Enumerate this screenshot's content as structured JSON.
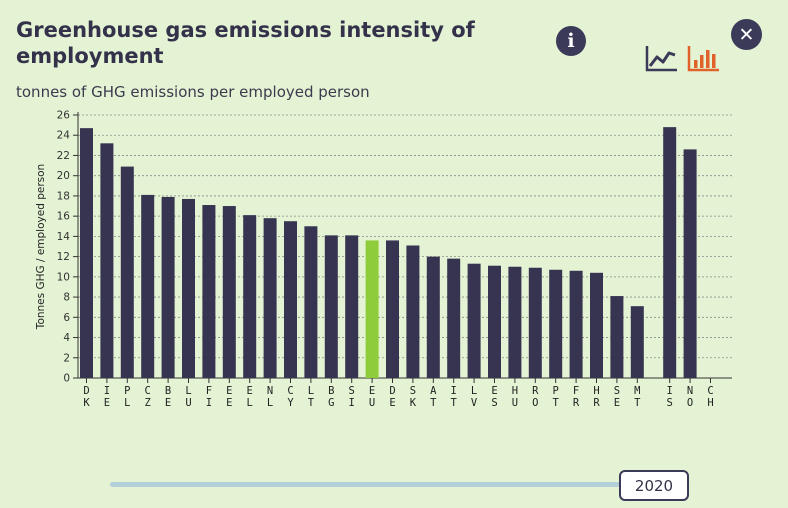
{
  "header": {
    "title": "Greenhouse gas emissions intensity of employment",
    "subtitle": "tonnes of GHG emissions per employed person",
    "info_icon": "info-icon",
    "close_icon": "close-icon",
    "line_chart_icon": "line-chart-icon",
    "bar_chart_icon": "bar-chart-icon"
  },
  "colors": {
    "bar": "#363450",
    "highlight": "#8fcc3b",
    "accent": "#e0622a",
    "background": "#e4f3d4"
  },
  "chart_data": {
    "type": "bar",
    "title": "",
    "ylabel": "Tonnes GHG / employed person",
    "xlabel": "",
    "ylim": [
      0,
      26
    ],
    "yticks": [
      0,
      2,
      4,
      6,
      8,
      10,
      12,
      14,
      16,
      18,
      20,
      22,
      24,
      26
    ],
    "grid": true,
    "categories": [
      "DK",
      "IE",
      "PL",
      "CZ",
      "BE",
      "LU",
      "FI",
      "EE",
      "EL",
      "NL",
      "CY",
      "LT",
      "BG",
      "SI",
      "EU",
      "DE",
      "SK",
      "AT",
      "IT",
      "LV",
      "ES",
      "HU",
      "RO",
      "PT",
      "FR",
      "HR",
      "SE",
      "MT",
      "IS",
      "NO",
      "CH"
    ],
    "values": [
      24.7,
      23.2,
      20.9,
      18.1,
      17.9,
      17.7,
      17.1,
      17.0,
      16.1,
      15.8,
      15.5,
      15.0,
      14.1,
      14.1,
      13.6,
      13.6,
      13.1,
      12.0,
      11.8,
      11.3,
      11.1,
      11.0,
      10.9,
      10.7,
      10.6,
      10.4,
      8.1,
      7.1,
      24.8,
      22.6,
      null
    ],
    "highlight_category": "EU"
  },
  "slider": {
    "year": "2020"
  }
}
